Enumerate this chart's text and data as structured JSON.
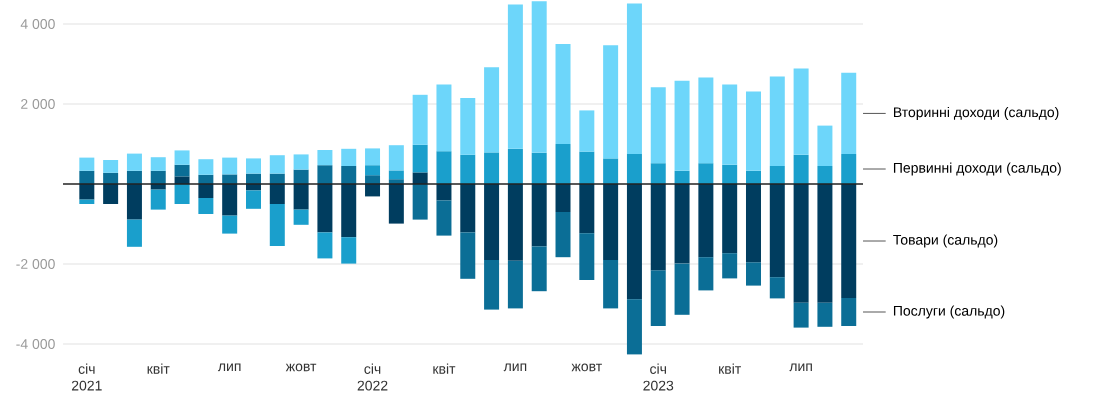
{
  "chart_data": {
    "type": "bar",
    "stacked": true,
    "categories": [
      "січ 2021",
      null,
      null,
      "квіт",
      null,
      null,
      "лип",
      null,
      null,
      "жовт",
      null,
      null,
      "січ 2022",
      null,
      null,
      "квіт",
      null,
      null,
      "лип",
      null,
      null,
      "жовт",
      null,
      null,
      "січ 2023",
      null,
      null,
      "квіт",
      null,
      null,
      "лип",
      null,
      null
    ],
    "series": [
      {
        "name": "Товари (сальдо)",
        "color": "#003d5f",
        "values": [
          -390,
          -500,
          -890,
          -140,
          190,
          -350,
          -790,
          -160,
          -500,
          -640,
          -1210,
          -1330,
          -310,
          -990,
          290,
          -410,
          -1210,
          -1900,
          -1920,
          -1560,
          -700,
          -1230,
          -1900,
          -2880,
          -2160,
          -1990,
          -1830,
          -1730,
          -1960,
          -2330,
          -2970,
          -2970,
          -2850
        ]
      },
      {
        "name": "Послуги (сальдо)",
        "color": "#0b6e96",
        "values": [
          330,
          280,
          330,
          330,
          290,
          230,
          240,
          260,
          260,
          360,
          470,
          450,
          220,
          120,
          -890,
          -880,
          -1160,
          -1240,
          -1190,
          -1120,
          -1130,
          -1170,
          -1210,
          -1380,
          -1390,
          -1280,
          -830,
          -630,
          -580,
          -530,
          -620,
          -600,
          -700
        ]
      },
      {
        "name": "Первинні доходи (сальдо)",
        "color": "#1a9fcc",
        "values": [
          -110,
          0,
          -680,
          -500,
          -500,
          -400,
          -450,
          -460,
          -1050,
          -380,
          -650,
          -660,
          250,
          220,
          690,
          820,
          730,
          790,
          880,
          780,
          1000,
          810,
          640,
          750,
          520,
          330,
          520,
          480,
          330,
          450,
          730,
          450,
          750
        ]
      },
      {
        "name": "Вторинні доходи (сальдо)",
        "color": "#6dd6fa",
        "values": [
          330,
          320,
          430,
          340,
          360,
          390,
          420,
          380,
          460,
          380,
          380,
          430,
          420,
          630,
          1250,
          1670,
          1420,
          2130,
          3610,
          3790,
          2500,
          1030,
          2830,
          3760,
          1900,
          2250,
          2140,
          2010,
          1980,
          2240,
          2160,
          1010,
          2030
        ]
      }
    ],
    "ylim": [
      -4300,
      4600
    ],
    "yticks": [
      {
        "value": -4000,
        "label": "-4 000"
      },
      {
        "value": -2000,
        "label": "-2 000"
      },
      {
        "value": 2000,
        "label": "2 000"
      },
      {
        "value": 4000,
        "label": "4 000"
      }
    ],
    "grid": "y",
    "ref_lines": [
      {
        "axis": "y",
        "value": 0,
        "color": "#222222"
      }
    ],
    "legend": "right"
  }
}
